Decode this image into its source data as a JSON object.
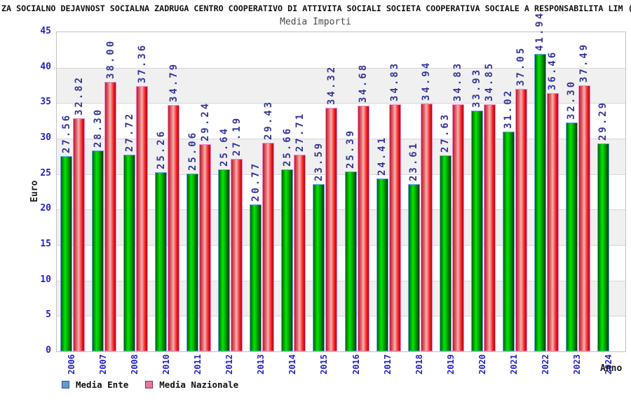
{
  "header": {
    "title": "ZA SOCIALNO DEJAVNOST SOCIALNA ZADRUGA CENTRO COOPERATIVO DI ATTIVITA SOCIALI SOCIETA COOPERATIVA SOCIALE A RESPONSABILITA LIM (o"
  },
  "chart_data": {
    "type": "bar",
    "title": "Media Importi",
    "xlabel": "Anno",
    "ylabel": "Euro",
    "ylim": [
      0,
      45
    ],
    "ytick_step": 5,
    "grid": true,
    "bands": "alternating-horizontal",
    "legend_position": "bottom-left",
    "value_label_decimals": 2,
    "categories": [
      "2006",
      "2007",
      "2008",
      "2010",
      "2011",
      "2012",
      "2013",
      "2014",
      "2015",
      "2016",
      "2017",
      "2018",
      "2019",
      "2020",
      "2021",
      "2022",
      "2023",
      "2024"
    ],
    "series": [
      {
        "name": "Media Ente",
        "values": [
          27.56,
          28.3,
          27.72,
          25.26,
          25.06,
          25.64,
          20.77,
          25.66,
          23.59,
          25.39,
          24.41,
          23.61,
          27.63,
          33.93,
          31.02,
          41.94,
          32.3,
          29.29
        ]
      },
      {
        "name": "Media Nazionale",
        "values": [
          32.82,
          38.0,
          37.36,
          34.79,
          29.24,
          27.19,
          29.43,
          27.71,
          34.32,
          34.68,
          34.83,
          34.94,
          34.83,
          34.85,
          37.05,
          36.46,
          37.49,
          null
        ]
      }
    ]
  },
  "palette": {
    "axis_tick_color": "#2222cc",
    "value_label_color": "#34379b",
    "band_color": "#f0f0f0",
    "grid_color": "#d6d6d6",
    "plot_border_color": "#c3c3c3",
    "bar1_border": "#6aa2e8",
    "bar1_gradient": [
      "#006400 0%",
      "#00e800 38%",
      "#00b400 60%",
      "#003c00 100%"
    ],
    "bar2_border": "#f287c5",
    "bar2_gradient": [
      "#c41432 0%",
      "#e07070 30%",
      "#f0b4b4 48%",
      "#ff2020 78%",
      "#9c0c20 100%"
    ],
    "legend1_fill": "#6699cc",
    "legend1_border": "#30568c",
    "legend2_fill": "#ee7799",
    "legend2_border": "#8c3056"
  }
}
